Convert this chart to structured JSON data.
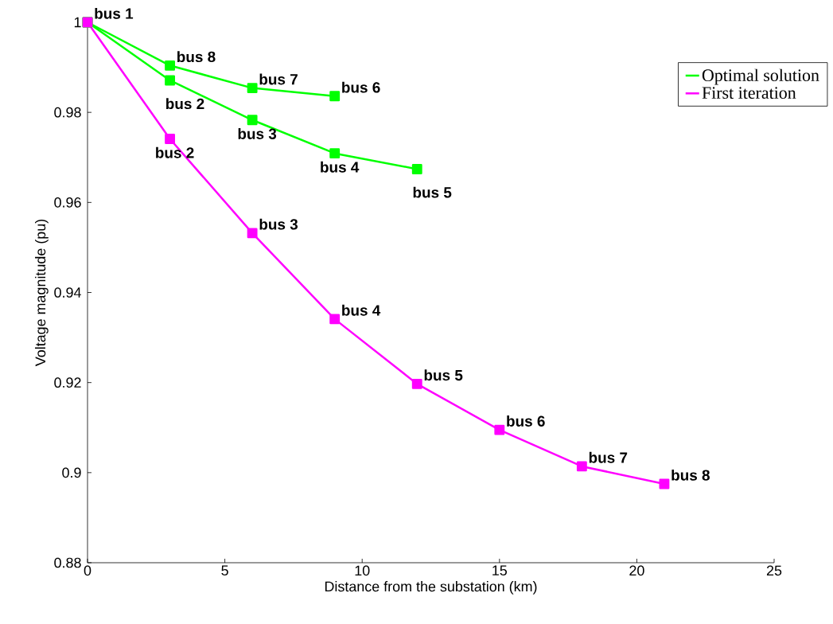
{
  "chart_data": {
    "type": "line",
    "xlabel": "Distance from the substation (km)",
    "ylabel": "Voltage magnitude (pu)",
    "xlim": [
      0,
      25
    ],
    "xticks": [
      0,
      5,
      10,
      15,
      20,
      25
    ],
    "ylim": [
      0.88,
      1
    ],
    "yticks": [
      0.88,
      0.9,
      0.92,
      0.94,
      0.96,
      0.98,
      1
    ],
    "grid": false,
    "legend": "top right",
    "marker": "square",
    "line_style": "solid",
    "series": [
      {
        "name": "Optimal solution",
        "color": "#00ff00",
        "x": [
          0,
          3,
          6,
          9,
          12
        ],
        "values": [
          1,
          0.9871,
          0.9783,
          0.9709,
          0.9674
        ]
      },
      {
        "color": "#00ff00",
        "x": [
          0,
          3,
          6,
          9
        ],
        "values": [
          1,
          0.9904,
          0.9854,
          0.9836
        ]
      },
      {
        "name": "First iteration",
        "color": "#ff00ff",
        "x": [
          0,
          3,
          6,
          9,
          12,
          15,
          18,
          21
        ],
        "values": [
          1,
          0.9741,
          0.9532,
          0.9341,
          0.9197,
          0.9095,
          0.9014,
          0.8975
        ]
      }
    ],
    "annotations": [
      {
        "text": "bus 1",
        "x": 0,
        "y": 1
      },
      {
        "text": "bus 8",
        "x": 3,
        "y": 0.9904
      },
      {
        "text": "bus 7",
        "x": 6,
        "y": 0.9854
      },
      {
        "text": "bus 6",
        "x": 9,
        "y": 0.9836
      },
      {
        "text": "bus 2",
        "x": 3,
        "y": 0.9871
      },
      {
        "text": "bus 3",
        "x": 6,
        "y": 0.9783
      },
      {
        "text": "bus 4",
        "x": 9,
        "y": 0.9709
      },
      {
        "text": "bus 5",
        "x": 12,
        "y": 0.9674
      },
      {
        "text": "bus 2",
        "x": 3,
        "y": 0.9741
      },
      {
        "text": "bus 3",
        "x": 6,
        "y": 0.9532
      },
      {
        "text": "bus 4",
        "x": 9,
        "y": 0.9341
      },
      {
        "text": "bus 5",
        "x": 12,
        "y": 0.9197
      },
      {
        "text": "bus 6",
        "x": 15,
        "y": 0.9095
      },
      {
        "text": "bus 7",
        "x": 18,
        "y": 0.9014
      },
      {
        "text": "bus 8",
        "x": 21,
        "y": 0.8975
      }
    ]
  }
}
